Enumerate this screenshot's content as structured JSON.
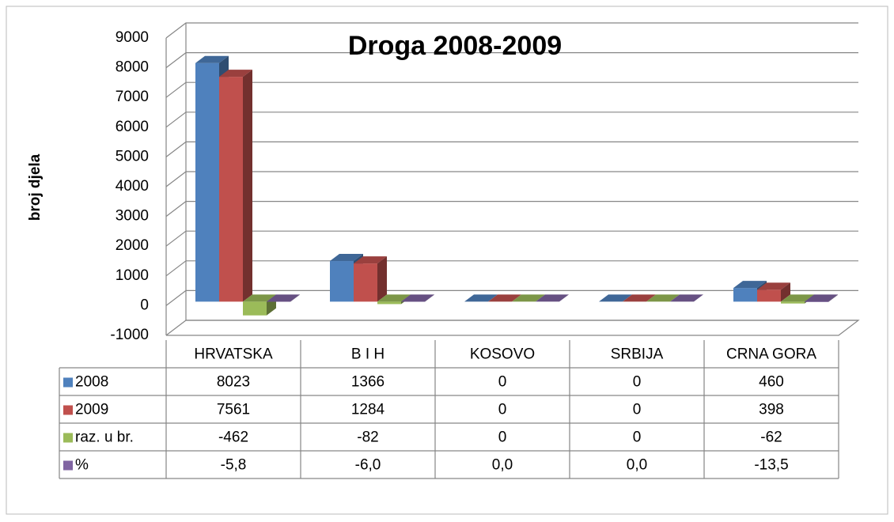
{
  "chart_data": {
    "type": "bar3d",
    "title": "Droga 2008-2009",
    "y_label": "broj djela",
    "categories": [
      "HRVATSKA",
      "B I H",
      "KOSOVO",
      "SRBIJA",
      "CRNA GORA"
    ],
    "series": [
      {
        "name": "2008",
        "color": "#4f81bd",
        "values": [
          8023,
          1366,
          0,
          0,
          460
        ]
      },
      {
        "name": "2009",
        "color": "#c0504d",
        "values": [
          7561,
          1284,
          0,
          0,
          398
        ]
      },
      {
        "name": "raz. u br.",
        "color": "#9bbb59",
        "values": [
          -462,
          -82,
          0,
          0,
          -62
        ]
      },
      {
        "name": "%",
        "color": "#8064a2",
        "values": [
          -5.8,
          -6.0,
          0.0,
          0.0,
          -13.5
        ],
        "value_labels": [
          "-5,8",
          "-6,0",
          "0,0",
          "0,0",
          "-13,5"
        ]
      }
    ],
    "ylim": [
      -1000,
      9000
    ],
    "yticks": [
      -1000,
      0,
      1000,
      2000,
      3000,
      4000,
      5000,
      6000,
      7000,
      8000,
      9000
    ],
    "grid": true
  }
}
